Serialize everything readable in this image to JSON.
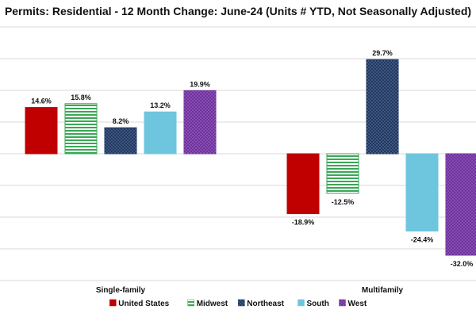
{
  "chart_data": {
    "type": "bar",
    "title": "Permits: Residential - 12 Month Change:  June-24 (Units # YTD, Not Seasonally Adjusted)",
    "categories": [
      "Single-family",
      "Multifamily"
    ],
    "series": [
      {
        "name": "United States",
        "values": [
          14.6,
          -18.9
        ],
        "labels": [
          "14.6%",
          "-18.9%"
        ],
        "color": "#c00000",
        "pattern": "solid"
      },
      {
        "name": "Midwest",
        "values": [
          15.8,
          -12.5
        ],
        "labels": [
          "15.8%",
          "-12.5%"
        ],
        "color": "#3aa655",
        "pattern": "horizontal-stripes"
      },
      {
        "name": "Northeast",
        "values": [
          8.2,
          29.7
        ],
        "labels": [
          "8.2%",
          "29.7%"
        ],
        "color": "#1f3864",
        "pattern": "dots"
      },
      {
        "name": "South",
        "values": [
          13.2,
          -24.4
        ],
        "labels": [
          "13.2%",
          "-24.4%"
        ],
        "color": "#6ec6de",
        "pattern": "solid"
      },
      {
        "name": "West",
        "values": [
          19.9,
          -32.0
        ],
        "labels": [
          "19.9%",
          "-32.0%"
        ],
        "color": "#7030a0",
        "pattern": "dots"
      }
    ],
    "ylim": [
      -40,
      40
    ],
    "y_gridlines": [
      -40,
      -30,
      -20,
      -10,
      0,
      10,
      20,
      30,
      40
    ],
    "grid": true,
    "legend_position": "bottom"
  }
}
